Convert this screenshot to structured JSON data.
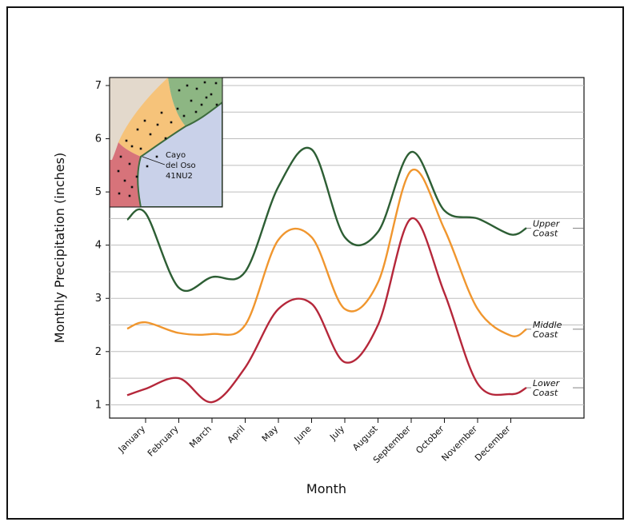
{
  "chart_data": {
    "type": "line",
    "xlabel": "Month",
    "ylabel": "Monthly Precipitation (inches)",
    "categories": [
      "January",
      "February",
      "March",
      "April",
      "May",
      "June",
      "July",
      "August",
      "September",
      "October",
      "November",
      "December"
    ],
    "ylim": [
      0.75,
      7.15
    ],
    "yticks": [
      "1",
      "2",
      "3",
      "4",
      "5",
      "6",
      "7"
    ],
    "grid": true,
    "series": [
      {
        "name": "Upper Coast",
        "label_lines": [
          "Upper",
          "Coast"
        ],
        "color": "#2d5e34",
        "values": [
          4.6,
          3.2,
          3.4,
          3.5,
          5.1,
          5.8,
          4.15,
          4.25,
          5.75,
          4.65,
          4.5,
          4.2
        ]
      },
      {
        "name": "Middle Coast",
        "label_lines": [
          "Middle",
          "Coast"
        ],
        "color": "#f0962e",
        "values": [
          2.55,
          2.35,
          2.33,
          2.5,
          4.1,
          4.15,
          2.8,
          3.3,
          5.4,
          4.3,
          2.8,
          2.3
        ]
      },
      {
        "name": "Lower Coast",
        "label_lines": [
          "Lower",
          "Coast"
        ],
        "color": "#b5273a",
        "values": [
          1.3,
          1.5,
          1.05,
          1.7,
          2.8,
          2.9,
          1.8,
          2.5,
          4.5,
          3.1,
          1.4,
          1.2
        ]
      }
    ]
  },
  "inset": {
    "site_label": [
      "Cayo",
      "del Oso",
      "41NU2"
    ],
    "colors": {
      "land": "#e3d9cc",
      "water": "#c9d1e9",
      "upper": "#8db683",
      "middle": "#f6c37a",
      "lower": "#d7737a"
    }
  }
}
